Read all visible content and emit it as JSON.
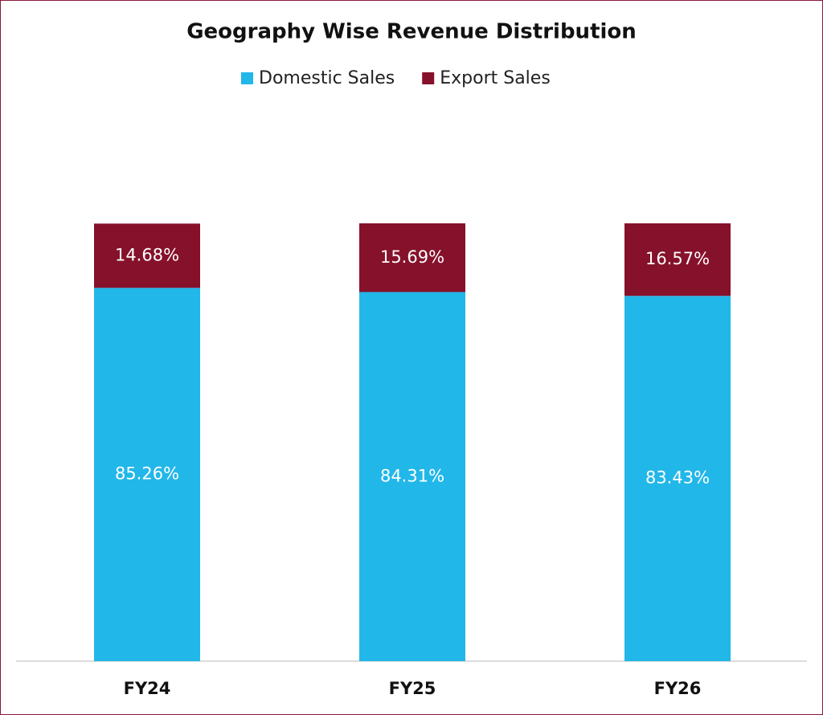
{
  "chart_data": {
    "type": "stacked_bar",
    "title": "Geography Wise Revenue Distribution",
    "categories": [
      "FY24",
      "FY25",
      "FY26"
    ],
    "series": [
      {
        "name": "Domestic Sales",
        "color": "#22b7e9",
        "values": [
          85.26,
          84.31,
          83.43
        ],
        "value_labels": [
          "85.26%",
          "84.31%",
          "83.43%"
        ]
      },
      {
        "name": "Export Sales",
        "color": "#86112b",
        "values": [
          14.68,
          15.69,
          16.57
        ],
        "value_labels": [
          "14.68%",
          "15.69%",
          "16.57%"
        ]
      }
    ],
    "legend": "top"
  }
}
